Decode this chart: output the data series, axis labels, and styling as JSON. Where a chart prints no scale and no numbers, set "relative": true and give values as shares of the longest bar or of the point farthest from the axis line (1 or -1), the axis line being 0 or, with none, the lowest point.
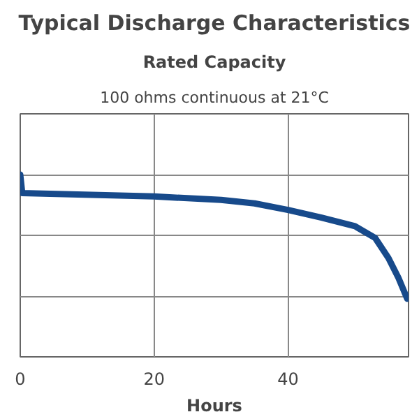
{
  "chart_data": {
    "type": "line",
    "title": "Typical Discharge Characteristics",
    "subtitle": "Rated Capacity",
    "annotations": [
      "100 ohms continuous at 21°C"
    ],
    "xlabel": "Hours",
    "relative": true,
    "grid": true,
    "line_style": "solid",
    "xlim": [
      0,
      58
    ],
    "xticks": [
      0,
      20,
      40
    ],
    "series": [
      {
        "color": "#174a8b",
        "x": [
          0,
          0.3,
          20,
          30,
          35,
          40,
          45,
          50,
          53,
          55,
          56.5,
          57.8
        ],
        "values": [
          1.0,
          0.898,
          0.88,
          0.861,
          0.842,
          0.806,
          0.764,
          0.717,
          0.653,
          0.542,
          0.433,
          0.319
        ]
      }
    ]
  }
}
